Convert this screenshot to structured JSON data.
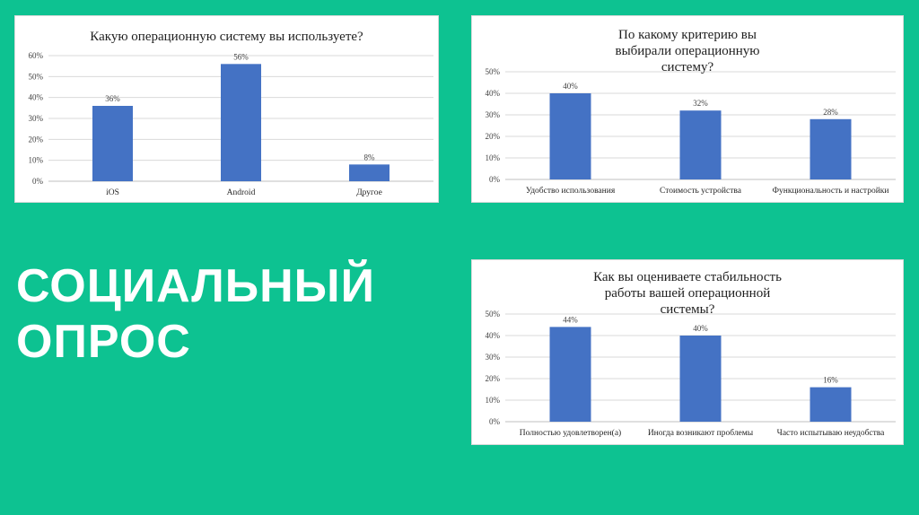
{
  "slide": {
    "background": "#0DC291",
    "headline": [
      "СОЦИАЛЬНЫЙ",
      "ОПРОС"
    ]
  },
  "chart_data": [
    {
      "type": "bar",
      "title": "Какую операционную систему вы используете?",
      "categories": [
        "iOS",
        "Android",
        "Другое"
      ],
      "values": [
        36,
        56,
        8
      ],
      "value_labels": [
        "36%",
        "56%",
        "8%"
      ],
      "yticks": [
        "0%",
        "10%",
        "20%",
        "30%",
        "40%",
        "50%",
        "60%"
      ],
      "ylim": [
        0,
        60
      ],
      "grid": true,
      "bar_color": "#4472C4"
    },
    {
      "type": "bar",
      "title": "По какому критерию вы выбирали операционную систему?",
      "categories": [
        "Удобство использования",
        "Стоимость устройства",
        "Функциональность и настройки"
      ],
      "values": [
        40,
        32,
        28
      ],
      "value_labels": [
        "40%",
        "32%",
        "28%"
      ],
      "yticks": [
        "0%",
        "10%",
        "20%",
        "30%",
        "40%",
        "50%"
      ],
      "ylim": [
        0,
        50
      ],
      "grid": true,
      "bar_color": "#4472C4"
    },
    {
      "type": "bar",
      "title": "Как вы оцениваете стабильность работы вашей операционной системы?",
      "categories": [
        "Полностью удовлетворен(а)",
        "Иногда возникают проблемы",
        "Часто испытываю неудобства"
      ],
      "values": [
        44,
        40,
        16
      ],
      "value_labels": [
        "44%",
        "40%",
        "16%"
      ],
      "yticks": [
        "0%",
        "10%",
        "20%",
        "30%",
        "40%",
        "50%"
      ],
      "ylim": [
        0,
        50
      ],
      "grid": true,
      "bar_color": "#4472C4"
    }
  ]
}
